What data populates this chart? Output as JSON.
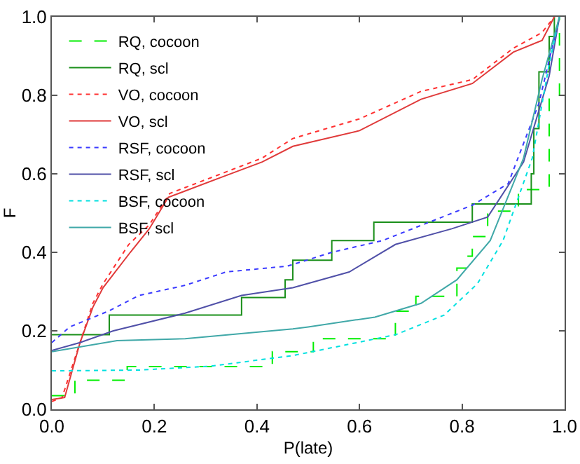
{
  "chart_data": {
    "type": "line",
    "xlabel": "P(late)",
    "ylabel": "F",
    "xlim": [
      0,
      1
    ],
    "ylim": [
      0,
      1
    ],
    "xticks": [
      {
        "value": 0,
        "label": "0.0"
      },
      0.2,
      0.4,
      0.6,
      0.8,
      {
        "value": 1,
        "label": "1.0"
      }
    ],
    "yticks": [
      {
        "value": 0,
        "label": "0.0"
      },
      0.2,
      0.4,
      0.6,
      0.8,
      {
        "value": 1,
        "label": "1.0"
      }
    ],
    "grid": false,
    "legend": "top left",
    "marker": "none",
    "series": [
      {
        "name": "RQ, cocoon",
        "type": "step",
        "line_style": "dashed",
        "color": "#00ee00",
        "x": [
          0,
          0.045,
          0.147,
          0.43,
          0.51,
          0.67,
          0.71,
          0.79,
          0.81,
          0.82,
          0.85,
          0.91,
          0.97,
          0.99
        ],
        "values": [
          0.035,
          0.074,
          0.109,
          0.147,
          0.18,
          0.25,
          0.288,
          0.36,
          0.39,
          0.44,
          0.505,
          0.56,
          0.8,
          1.0
        ]
      },
      {
        "name": "RQ, scl",
        "type": "step",
        "line_style": "solid",
        "color": "#1a8f1a",
        "x": [
          0,
          0.112,
          0.37,
          0.455,
          0.47,
          0.546,
          0.628,
          0.82,
          0.935,
          0.94,
          0.95,
          0.97,
          0.98
        ],
        "values": [
          0.19,
          0.24,
          0.285,
          0.33,
          0.38,
          0.43,
          0.477,
          0.523,
          0.6,
          0.715,
          0.86,
          0.95,
          1.0
        ]
      },
      {
        "name": "VO, cocoon",
        "type": "line",
        "line_style": "dotted",
        "color": "#ff3030",
        "x": [
          0,
          0.02,
          0.05,
          0.08,
          0.1,
          0.15,
          0.19,
          0.23,
          0.33,
          0.41,
          0.47,
          0.6,
          0.72,
          0.82,
          0.9,
          0.956,
          0.98
        ],
        "values": [
          0.02,
          0.03,
          0.15,
          0.27,
          0.32,
          0.42,
          0.47,
          0.55,
          0.6,
          0.64,
          0.69,
          0.74,
          0.81,
          0.84,
          0.92,
          0.96,
          1.0
        ]
      },
      {
        "name": "VO, scl",
        "type": "line",
        "line_style": "solid",
        "color": "#e03a3a",
        "x": [
          0,
          0.025,
          0.055,
          0.08,
          0.1,
          0.153,
          0.19,
          0.227,
          0.328,
          0.41,
          0.47,
          0.6,
          0.72,
          0.82,
          0.9,
          0.956,
          0.98
        ],
        "values": [
          0.025,
          0.03,
          0.17,
          0.26,
          0.31,
          0.4,
          0.46,
          0.54,
          0.59,
          0.63,
          0.67,
          0.71,
          0.79,
          0.83,
          0.91,
          0.94,
          1.0
        ]
      },
      {
        "name": "RSF, cocoon",
        "type": "line",
        "line_style": "dotted",
        "color": "#3a3aff",
        "x": [
          0,
          0.035,
          0.11,
          0.17,
          0.26,
          0.34,
          0.46,
          0.546,
          0.645,
          0.82,
          0.89,
          0.95,
          0.99
        ],
        "values": [
          0.17,
          0.21,
          0.25,
          0.29,
          0.316,
          0.35,
          0.365,
          0.4,
          0.43,
          0.52,
          0.575,
          0.78,
          1.0
        ]
      },
      {
        "name": "RSF, scl",
        "type": "line",
        "line_style": "solid",
        "color": "#5050a8",
        "x": [
          0,
          0.055,
          0.12,
          0.26,
          0.37,
          0.47,
          0.58,
          0.67,
          0.78,
          0.85,
          0.92,
          0.97,
          0.99
        ],
        "values": [
          0.15,
          0.17,
          0.2,
          0.245,
          0.29,
          0.31,
          0.35,
          0.42,
          0.46,
          0.49,
          0.63,
          0.85,
          1.0
        ]
      },
      {
        "name": "BSF, cocoon",
        "type": "line",
        "line_style": "dotted",
        "color": "#00e0e0",
        "x": [
          0,
          0.17,
          0.31,
          0.47,
          0.535,
          0.67,
          0.765,
          0.83,
          0.88,
          0.937,
          0.97,
          0.99
        ],
        "values": [
          0.098,
          0.1,
          0.11,
          0.137,
          0.154,
          0.19,
          0.24,
          0.32,
          0.43,
          0.64,
          0.88,
          1.0
        ]
      },
      {
        "name": "BSF, scl",
        "type": "line",
        "line_style": "solid",
        "color": "#40a8a8",
        "x": [
          0,
          0.127,
          0.26,
          0.47,
          0.5,
          0.63,
          0.72,
          0.79,
          0.855,
          0.92,
          0.956,
          0.99
        ],
        "values": [
          0.147,
          0.175,
          0.18,
          0.205,
          0.21,
          0.235,
          0.27,
          0.33,
          0.43,
          0.64,
          0.84,
          1.0
        ]
      }
    ]
  }
}
